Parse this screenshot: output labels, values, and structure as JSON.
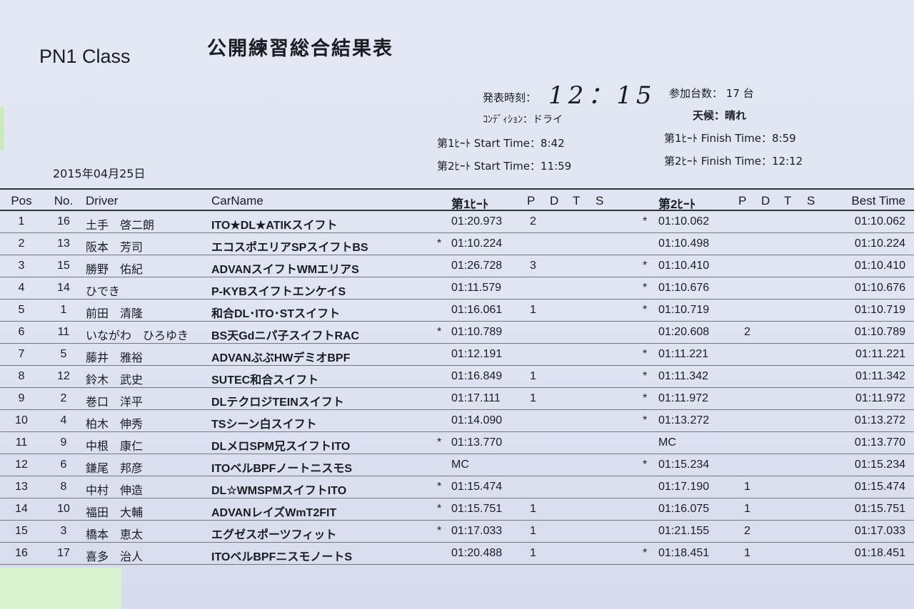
{
  "header": {
    "class_name": "PN1 Class",
    "title": "公開練習総合結果表",
    "date": "2015年04月25日",
    "announce_label": "発表時刻：",
    "announce_time": "12：15",
    "entries_label": "参加台数：",
    "entries_value": "17 台",
    "condition_label": "ｺﾝﾃﾞｨｼｮﾝ：",
    "condition_value": "ドライ",
    "weather_label": "天候：",
    "weather_value": "晴れ",
    "heat1_start": "第1ﾋｰﾄ Start Time：8:42",
    "heat1_finish": "第1ﾋｰﾄ Finish Time：8:59",
    "heat2_start": "第2ﾋｰﾄ Start Time：11:59",
    "heat2_finish": "第2ﾋｰﾄ Finish Time：12:12"
  },
  "columns": {
    "pos": "Pos",
    "no": "No.",
    "driver": "Driver",
    "car": "CarName",
    "heat1": "第1ﾋｰﾄ",
    "pdts1": [
      "P",
      "D",
      "T",
      "S"
    ],
    "heat2": "第2ﾋｰﾄ",
    "pdts2": [
      "P",
      "D",
      "T",
      "S"
    ],
    "best": "Best Time"
  },
  "rows": [
    {
      "pos": "1",
      "no": "16",
      "driver": "土手　啓二朗",
      "car": "ITO★DL★ATIKスイフト",
      "s1": "",
      "h1": "01:20.973",
      "p1": "2",
      "s2": "*",
      "h2": "01:10.062",
      "p2": "",
      "best": "01:10.062"
    },
    {
      "pos": "2",
      "no": "13",
      "driver": "阪本　芳司",
      "car": "エコスポエリアSPスイフトBS",
      "s1": "*",
      "h1": "01:10.224",
      "p1": "",
      "s2": "",
      "h2": "01:10.498",
      "p2": "",
      "best": "01:10.224"
    },
    {
      "pos": "3",
      "no": "15",
      "driver": "勝野　佑紀",
      "car": "ADVANスイフトWMエリアS",
      "s1": "",
      "h1": "01:26.728",
      "p1": "3",
      "s2": "*",
      "h2": "01:10.410",
      "p2": "",
      "best": "01:10.410"
    },
    {
      "pos": "4",
      "no": "14",
      "driver": "ひでき",
      "car": "P-KYBスイフトエンケイS",
      "s1": "",
      "h1": "01:11.579",
      "p1": "",
      "s2": "*",
      "h2": "01:10.676",
      "p2": "",
      "best": "01:10.676"
    },
    {
      "pos": "5",
      "no": "1",
      "driver": "前田　清隆",
      "car": "和合DL･ITO･STスイフト",
      "s1": "",
      "h1": "01:16.061",
      "p1": "1",
      "s2": "*",
      "h2": "01:10.719",
      "p2": "",
      "best": "01:10.719"
    },
    {
      "pos": "6",
      "no": "11",
      "driver": "いながわ　ひろゆき",
      "car": "BS天Gdニパ子スイフトRAC",
      "s1": "*",
      "h1": "01:10.789",
      "p1": "",
      "s2": "",
      "h2": "01:20.608",
      "p2": "2",
      "best": "01:10.789"
    },
    {
      "pos": "7",
      "no": "5",
      "driver": "藤井　雅裕",
      "car": "ADVANぶぶHWデミオBPF",
      "s1": "",
      "h1": "01:12.191",
      "p1": "",
      "s2": "*",
      "h2": "01:11.221",
      "p2": "",
      "best": "01:11.221"
    },
    {
      "pos": "8",
      "no": "12",
      "driver": "鈴木　武史",
      "car": "SUTEC和合スイフト",
      "s1": "",
      "h1": "01:16.849",
      "p1": "1",
      "s2": "*",
      "h2": "01:11.342",
      "p2": "",
      "best": "01:11.342"
    },
    {
      "pos": "9",
      "no": "2",
      "driver": "巻口　洋平",
      "car": "DLテクロジTEINスイフト",
      "s1": "",
      "h1": "01:17.111",
      "p1": "1",
      "s2": "*",
      "h2": "01:11.972",
      "p2": "",
      "best": "01:11.972"
    },
    {
      "pos": "10",
      "no": "4",
      "driver": "柏木　伸秀",
      "car": "TSシーン白スイフト",
      "s1": "",
      "h1": "01:14.090",
      "p1": "",
      "s2": "*",
      "h2": "01:13.272",
      "p2": "",
      "best": "01:13.272"
    },
    {
      "pos": "11",
      "no": "9",
      "driver": "中根　康仁",
      "car": "DLメロSPM兄スイフトITO",
      "s1": "*",
      "h1": "01:13.770",
      "p1": "",
      "s2": "",
      "h2": "MC",
      "p2": "",
      "best": "01:13.770"
    },
    {
      "pos": "12",
      "no": "6",
      "driver": "鎌尾　邦彦",
      "car": "ITOベルBPFノートニスモS",
      "s1": "",
      "h1": "MC",
      "p1": "",
      "s2": "*",
      "h2": "01:15.234",
      "p2": "",
      "best": "01:15.234"
    },
    {
      "pos": "13",
      "no": "8",
      "driver": "中村　伸造",
      "car": "DL☆WMSPMスイフトITO",
      "s1": "*",
      "h1": "01:15.474",
      "p1": "",
      "s2": "",
      "h2": "01:17.190",
      "p2": "1",
      "best": "01:15.474"
    },
    {
      "pos": "14",
      "no": "10",
      "driver": "福田　大輔",
      "car": "ADVANレイズWmT2FIT",
      "s1": "*",
      "h1": "01:15.751",
      "p1": "1",
      "s2": "",
      "h2": "01:16.075",
      "p2": "1",
      "best": "01:15.751"
    },
    {
      "pos": "15",
      "no": "3",
      "driver": "橋本　恵太",
      "car": "エグゼスポーツフィット",
      "s1": "*",
      "h1": "01:17.033",
      "p1": "1",
      "s2": "",
      "h2": "01:21.155",
      "p2": "2",
      "best": "01:17.033"
    },
    {
      "pos": "16",
      "no": "17",
      "driver": "喜多　治人",
      "car": "ITOベルBPFニスモノートS",
      "s1": "",
      "h1": "01:20.488",
      "p1": "1",
      "s2": "*",
      "h2": "01:18.451",
      "p2": "1",
      "best": "01:18.451"
    }
  ]
}
